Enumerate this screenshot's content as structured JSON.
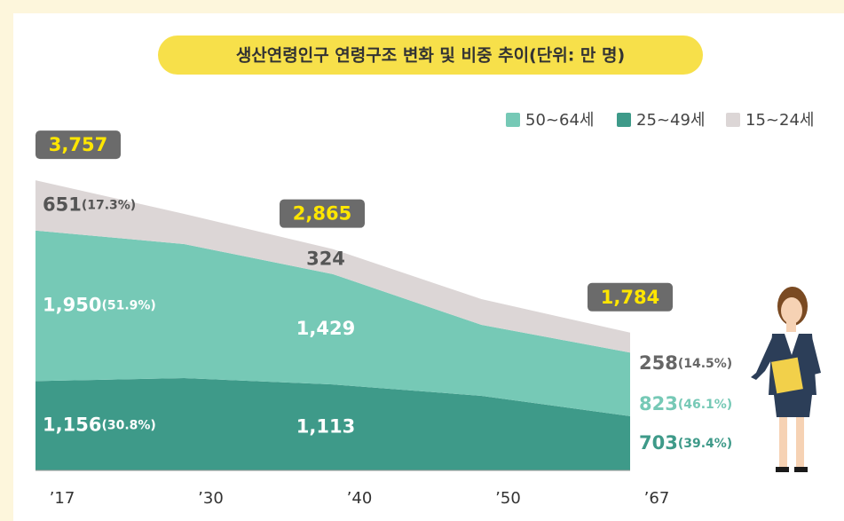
{
  "chart_data": {
    "type": "stacked-area",
    "title": "생산연령인구 연령구조 변화 및 비중 추이(단위: 만 명)",
    "categories": [
      "’17",
      "’30",
      "’40",
      "’50",
      "’67"
    ],
    "series": [
      {
        "name": "50~64세",
        "color": "#76c9b6",
        "values": [
          1950,
          1736,
          1429,
          919,
          823
        ],
        "value_labels": [
          "1,950",
          null,
          "1,429",
          null,
          "823"
        ],
        "share_labels": [
          "(51.9%)",
          null,
          null,
          null,
          "(46.1%)"
        ]
      },
      {
        "name": "25~49세",
        "color": "#3e9a89",
        "values": [
          1156,
          1195,
          1113,
          966,
          703
        ],
        "value_labels": [
          "1,156",
          null,
          "1,113",
          null,
          "703"
        ],
        "share_labels": [
          "(30.8%)",
          null,
          null,
          null,
          "(39.4%)"
        ]
      },
      {
        "name": "15~24세",
        "color": "#dcd6d6",
        "values": [
          651,
          391,
          324,
          333,
          258
        ],
        "value_labels": [
          "651",
          null,
          "324",
          null,
          "258"
        ],
        "share_labels": [
          "(17.3%)",
          null,
          null,
          null,
          "(14.5%)"
        ]
      }
    ],
    "total_labels": [
      "3,757",
      null,
      "2,865",
      null,
      "1,784"
    ]
  }
}
